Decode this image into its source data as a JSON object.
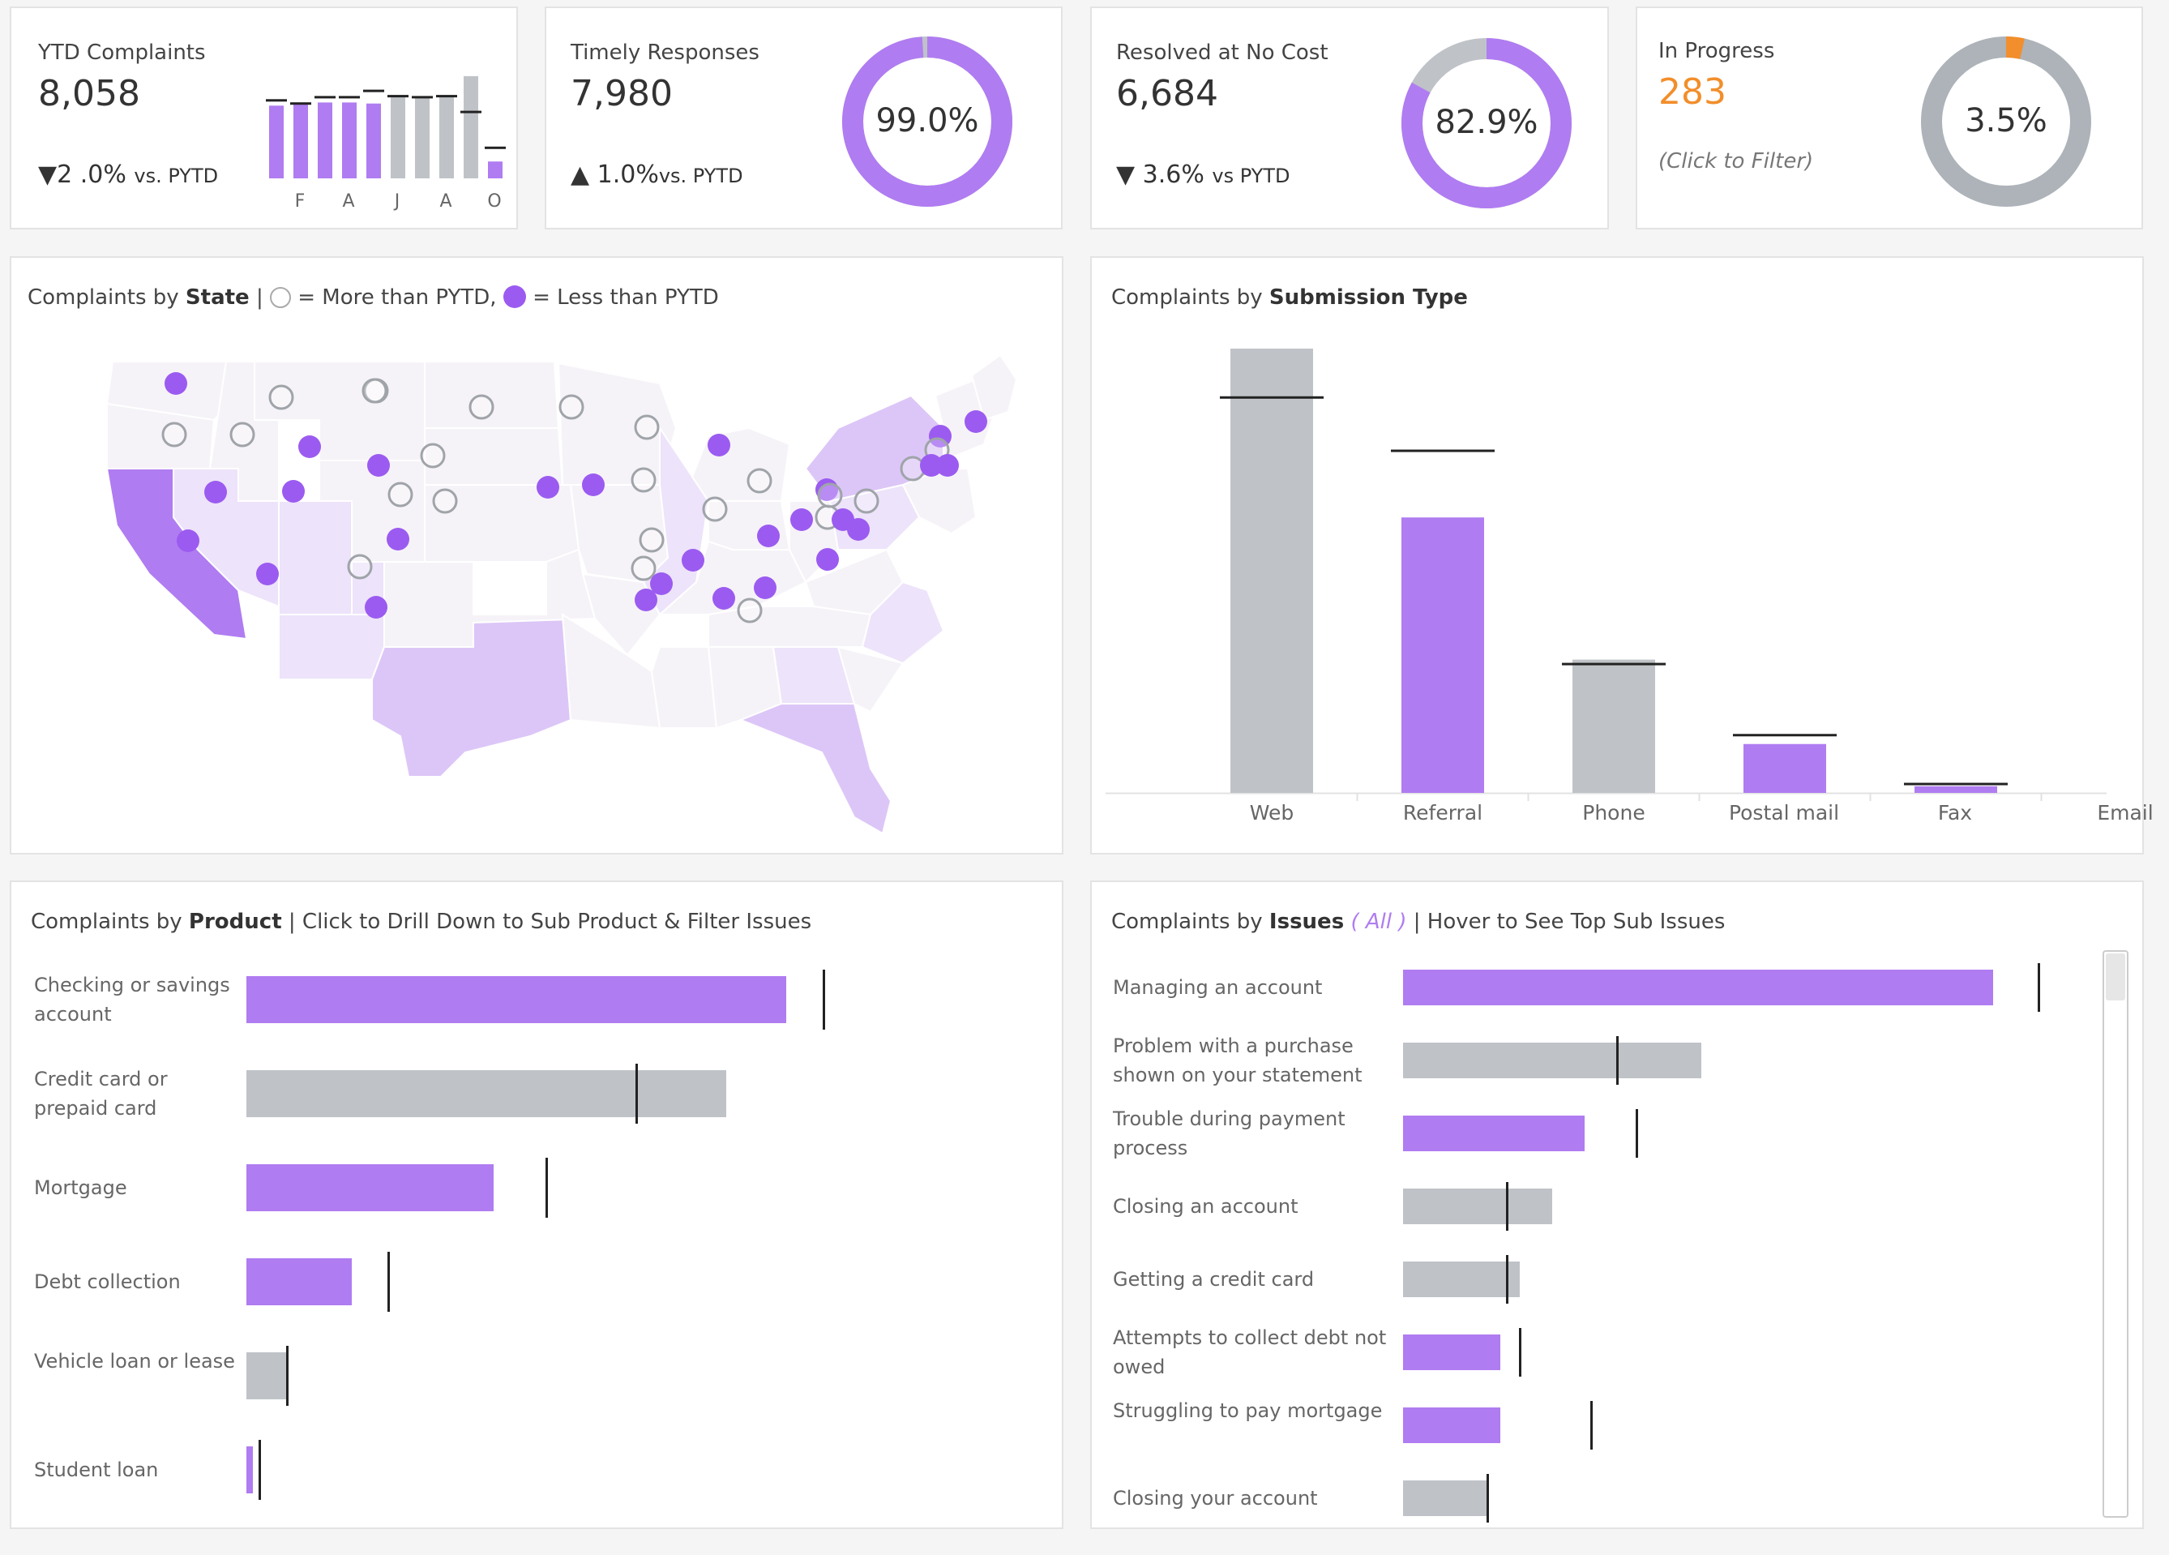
{
  "colors": {
    "purple": "#b07cf1",
    "dark_purple": "#9b5bf0",
    "grey": "#bfc3c8",
    "orange": "#f28e2b",
    "map_dark": "#b07cf1",
    "map_mid": "#dcc6f7",
    "map_light": "#ede3fa",
    "map_pale": "#f6f3f8"
  },
  "kpis": {
    "ytd": {
      "title": "YTD Complaints",
      "value": "8,058",
      "delta_arrow": "▼",
      "delta_value": "2 .0%",
      "delta_suffix": "vs. PYTD",
      "spark_labels": [
        "F",
        "A",
        "J",
        "A",
        "O"
      ]
    },
    "timely": {
      "title": "Timely Responses",
      "value": "7,980",
      "delta_arrow": "▲",
      "delta_value": "1.0%",
      "delta_suffix": "vs. PYTD",
      "donut_label": "99.0%",
      "donut_fraction": 0.99
    },
    "resolved": {
      "title": "Resolved at No Cost",
      "value": "6,684",
      "delta_arrow": "▼",
      "delta_value": "3.6%",
      "delta_suffix": "vs PYTD",
      "donut_label": "82.9%",
      "donut_fraction": 0.829
    },
    "in_progress": {
      "title": "In Progress",
      "value": "283",
      "note": "(Click to Filter)",
      "donut_label": "3.5%",
      "donut_fraction": 0.035
    }
  },
  "map_panel": {
    "title_prefix": "Complaints by ",
    "title_bold": "State",
    "legend_sep": "|",
    "legend_more": "= More than PYTD,",
    "legend_less": "= Less than PYTD"
  },
  "submission_panel": {
    "title_prefix": "Complaints by ",
    "title_bold": "Submission Type"
  },
  "product_panel": {
    "title_prefix": "Complaints by ",
    "title_bold": "Product",
    "title_suffix": "| Click to Drill Down to Sub Product & Filter Issues",
    "rows": [
      {
        "label": "Checking or savings account",
        "value": 0.72,
        "pytd": 0.77,
        "color": "purple"
      },
      {
        "label": "Credit card or prepaid card",
        "value": 0.64,
        "pytd": 0.52,
        "color": "grey"
      },
      {
        "label": "Mortgage",
        "value": 0.33,
        "pytd": 0.4,
        "color": "purple"
      },
      {
        "label": "Debt collection",
        "value": 0.14,
        "pytd": 0.19,
        "color": "purple"
      },
      {
        "label": "Vehicle loan or lease",
        "value": 0.055,
        "pytd": 0.055,
        "color": "grey"
      },
      {
        "label": "Student loan",
        "value": 0.009,
        "pytd": 0.018,
        "color": "purple"
      }
    ]
  },
  "issues_panel": {
    "title_prefix": "Complaints by ",
    "title_bold": "Issues",
    "title_filter_open": "( ",
    "title_filter": "All",
    "title_filter_close": " )",
    "title_suffix": "| Hover to See Top Sub Issues",
    "rows": [
      {
        "label": "Managing an account",
        "value": 0.91,
        "pytd": 0.98,
        "color": "purple"
      },
      {
        "label": "Problem with a purchase shown on your statement",
        "value": 0.46,
        "pytd": 0.33,
        "color": "grey"
      },
      {
        "label": "Trouble during payment process",
        "value": 0.28,
        "pytd": 0.36,
        "color": "purple"
      },
      {
        "label": "Closing an account",
        "value": 0.23,
        "pytd": 0.16,
        "color": "grey"
      },
      {
        "label": "Getting a credit card",
        "value": 0.18,
        "pytd": 0.16,
        "color": "grey"
      },
      {
        "label": "Attempts to collect debt not owed",
        "value": 0.15,
        "pytd": 0.18,
        "color": "purple"
      },
      {
        "label": "Struggling to pay mortgage",
        "value": 0.15,
        "pytd": 0.29,
        "color": "purple"
      },
      {
        "label": "Closing your account",
        "value": 0.13,
        "pytd": 0.13,
        "color": "grey"
      }
    ]
  },
  "chart_data": {
    "type": "bar",
    "categories": [
      "Web",
      "Referral",
      "Phone",
      "Postal mail",
      "Fax",
      "Email"
    ],
    "series": [
      {
        "values": [
          100,
          62,
          30,
          11,
          1.5,
          0
        ]
      },
      {
        "values": [
          89,
          77,
          29,
          13,
          2,
          0
        ]
      }
    ],
    "bar_colors": [
      "grey",
      "purple",
      "grey",
      "purple",
      "purple",
      "grey"
    ],
    "ylim": [
      0,
      100
    ],
    "grid": false
  }
}
